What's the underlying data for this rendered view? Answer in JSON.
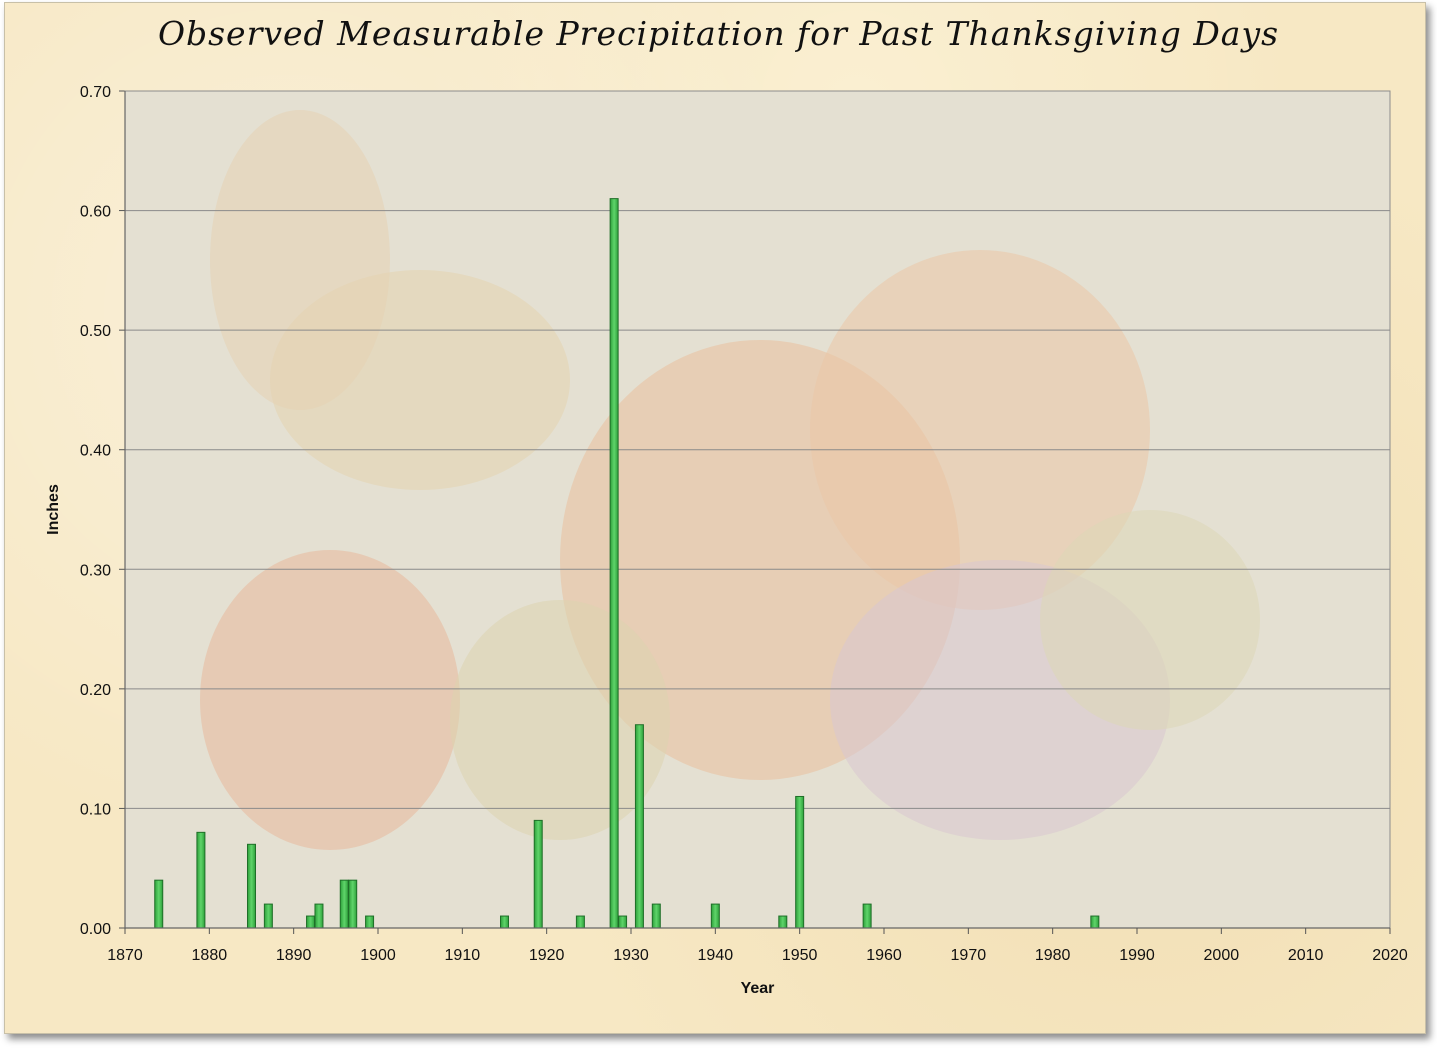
{
  "chart_data": {
    "type": "bar",
    "title": "Observed Measurable Precipitation for Past Thanksgiving Days",
    "xlabel": "Year",
    "ylabel": "Inches",
    "xlim": [
      1870,
      2020
    ],
    "ylim": [
      0,
      0.7
    ],
    "x_ticks": [
      "1870",
      "1880",
      "1890",
      "1900",
      "1910",
      "1920",
      "1930",
      "1940",
      "1950",
      "1960",
      "1970",
      "1980",
      "1990",
      "2000",
      "2010",
      "2020"
    ],
    "y_ticks": [
      "0.00",
      "0.10",
      "0.20",
      "0.30",
      "0.40",
      "0.50",
      "0.60",
      "0.70"
    ],
    "grid": true,
    "legend": "none",
    "bar_color": "#3dbb4a",
    "bar_edge_color": "#1f6f28",
    "plot_background": "#e4e0d2",
    "x": [
      1874,
      1879,
      1885,
      1887,
      1892,
      1893,
      1896,
      1897,
      1899,
      1915,
      1919,
      1924,
      1928,
      1929,
      1931,
      1933,
      1940,
      1948,
      1950,
      1958,
      1985
    ],
    "values": [
      0.04,
      0.08,
      0.07,
      0.02,
      0.01,
      0.02,
      0.04,
      0.04,
      0.01,
      0.01,
      0.09,
      0.01,
      0.61,
      0.01,
      0.17,
      0.02,
      0.02,
      0.01,
      0.11,
      0.02,
      0.01
    ]
  }
}
